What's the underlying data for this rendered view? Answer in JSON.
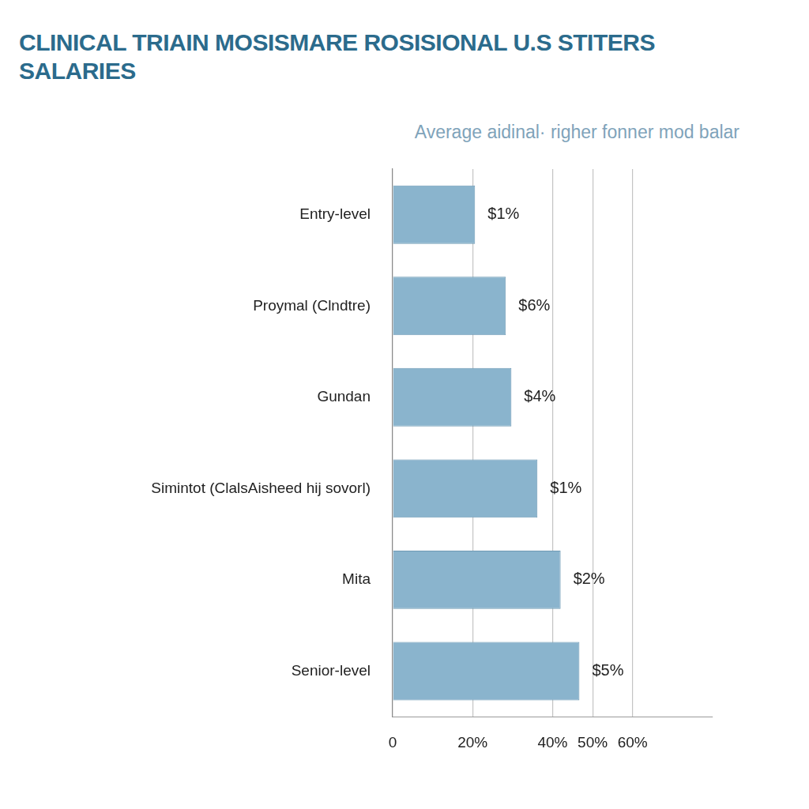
{
  "chart_data": {
    "type": "bar",
    "orientation": "horizontal",
    "title": "CLINICAL TRIAIN MOSISMARE ROSISIONAL U.S STITERS SALARIES",
    "subtitle": "Average aidinal· righer fonner mod balar",
    "categories": [
      "Entry-level",
      "Proymal (Clndtre)",
      "Gundan",
      "Simintot (ClalsAisheed hij sovorl)",
      "Mita",
      "Senior-level"
    ],
    "values": [
      20.6,
      28.3,
      29.7,
      36.2,
      42,
      46.7
    ],
    "annotations": [
      "$1%",
      "$6%",
      "$4%",
      "$1%",
      "$2%",
      "$5%"
    ],
    "color": "#8ab4cd",
    "xlim": [
      0,
      80
    ],
    "xticks": [
      0,
      {
        "value": 20,
        "label": "20%"
      },
      {
        "value": 60,
        "label": "60%"
      },
      {
        "value": 50,
        "label": "50%"
      },
      {
        "value": 40,
        "label": "40%"
      }
    ],
    "grid": true
  }
}
